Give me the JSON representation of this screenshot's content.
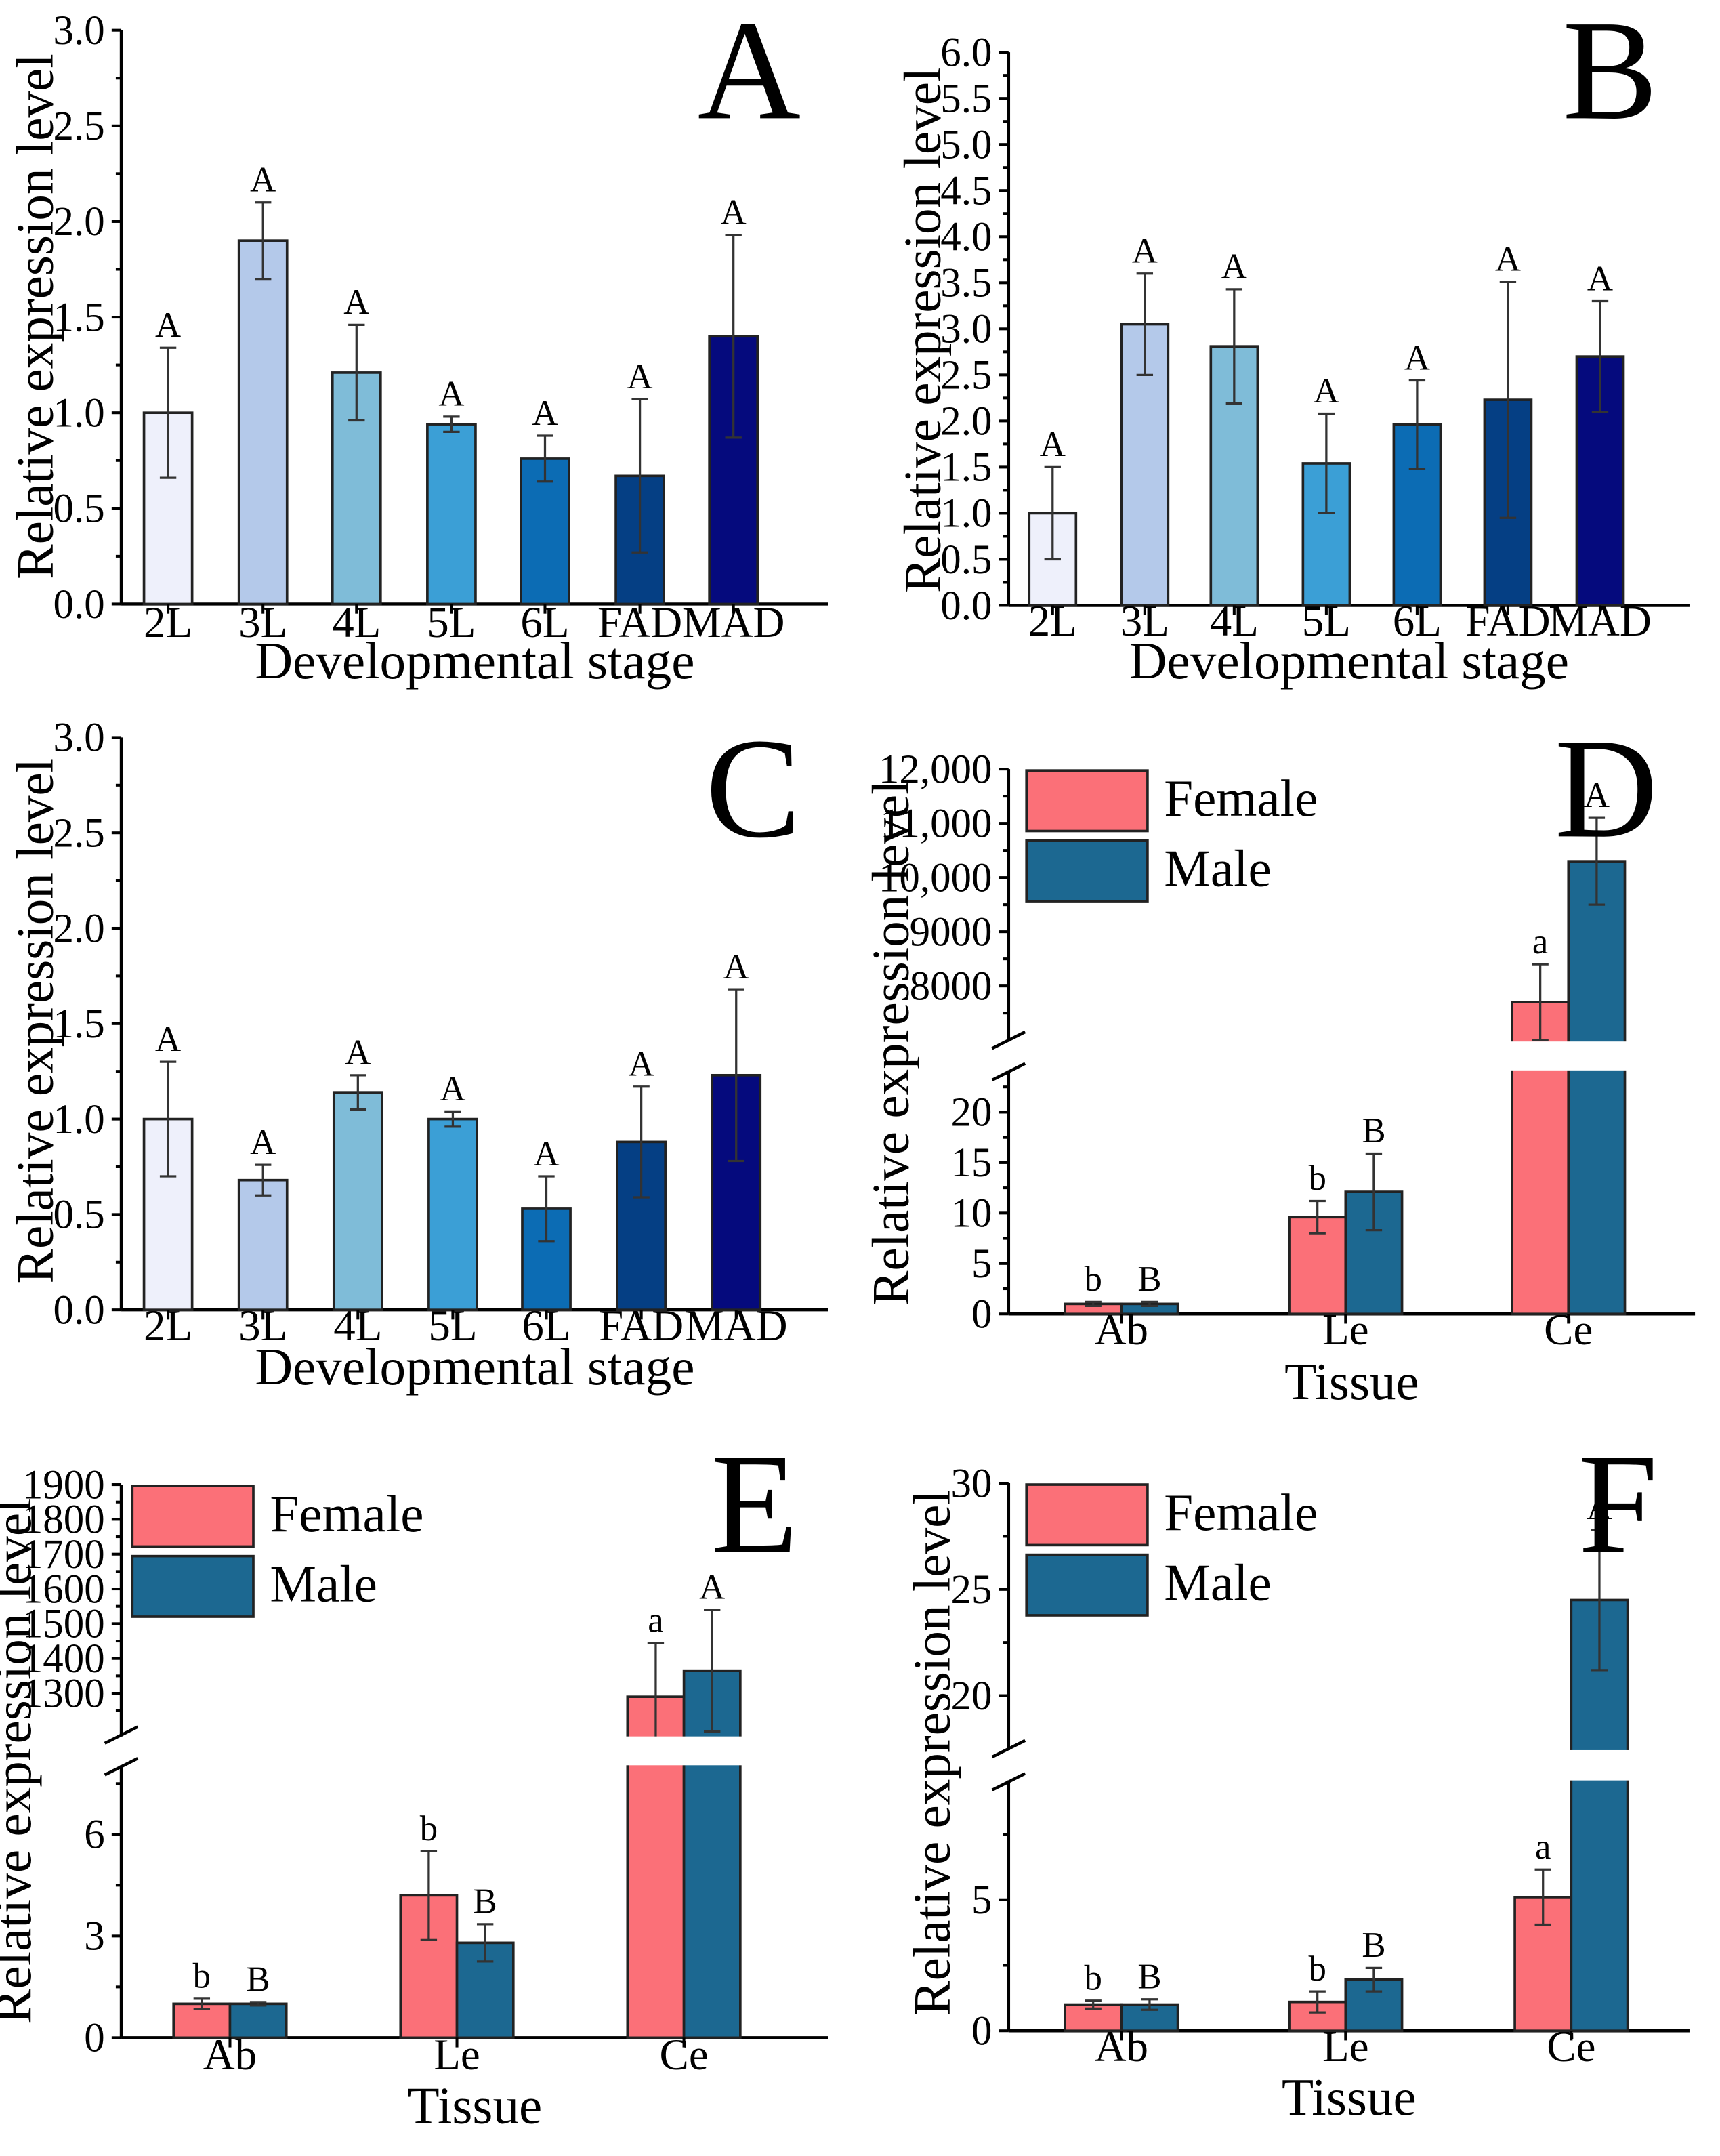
{
  "colors": {
    "stage": [
      "#eef0fb",
      "#b4c9ea",
      "#7fbcd8",
      "#3b9fd6",
      "#0c6cb4",
      "#053f84",
      "#050a7d"
    ],
    "female": "#fb7078",
    "male": "#1c6891"
  },
  "chart_data": [
    {
      "id": "A",
      "type": "bar",
      "panel_label": "A",
      "categories": [
        "2L",
        "3L",
        "4L",
        "5L",
        "6L",
        "FAD",
        "MAD"
      ],
      "values": [
        1.0,
        1.9,
        1.21,
        0.94,
        0.76,
        0.67,
        1.4
      ],
      "errors": [
        0.34,
        0.2,
        0.25,
        0.04,
        0.12,
        0.4,
        0.53
      ],
      "significance": [
        "A",
        "A",
        "A",
        "A",
        "A",
        "A",
        "A"
      ],
      "ylim": [
        0,
        3.0
      ],
      "yticks": [
        0,
        0.5,
        1.0,
        1.5,
        2.0,
        2.5,
        3.0
      ],
      "ytick_labels": [
        "0.0",
        "0.5",
        "1.0",
        "1.5",
        "2.0",
        "2.5",
        "3.0"
      ],
      "xlabel": "Developmental stage",
      "ylabel": "Relative expression level"
    },
    {
      "id": "B",
      "type": "bar",
      "panel_label": "B",
      "categories": [
        "2L",
        "3L",
        "4L",
        "5L",
        "6L",
        "FAD",
        "MAD"
      ],
      "values": [
        1.0,
        3.05,
        2.81,
        1.54,
        1.96,
        2.23,
        2.7
      ],
      "errors": [
        0.5,
        0.55,
        0.62,
        0.54,
        0.48,
        1.28,
        0.6
      ],
      "significance": [
        "A",
        "A",
        "A",
        "A",
        "A",
        "A",
        "A"
      ],
      "ylim": [
        0,
        6.0
      ],
      "yticks": [
        0,
        0.5,
        1.0,
        1.5,
        2.0,
        2.5,
        3.0,
        3.5,
        4.0,
        4.5,
        5.0,
        5.5,
        6.0
      ],
      "ytick_labels": [
        "0.0",
        "0.5",
        "1.0",
        "1.5",
        "2.0",
        "2.5",
        "3.0",
        "3.5",
        "4.0",
        "4.5",
        "5.0",
        "5.5",
        "6.0"
      ],
      "xlabel": "Developmental stage",
      "ylabel": "Relative expression level"
    },
    {
      "id": "C",
      "type": "bar",
      "panel_label": "C",
      "categories": [
        "2L",
        "3L",
        "4L",
        "5L",
        "6L",
        "FAD",
        "MAD"
      ],
      "values": [
        1.0,
        0.68,
        1.14,
        1.0,
        0.53,
        0.88,
        1.23
      ],
      "errors": [
        0.3,
        0.08,
        0.09,
        0.04,
        0.17,
        0.29,
        0.45
      ],
      "significance": [
        "A",
        "A",
        "A",
        "A",
        "A",
        "A",
        "A"
      ],
      "ylim": [
        0,
        3.0
      ],
      "yticks": [
        0,
        0.5,
        1.0,
        1.5,
        2.0,
        2.5,
        3.0
      ],
      "ytick_labels": [
        "0.0",
        "0.5",
        "1.0",
        "1.5",
        "2.0",
        "2.5",
        "3.0"
      ],
      "xlabel": "Developmental stage",
      "ylabel": "Relative expression level"
    },
    {
      "id": "D",
      "type": "bar",
      "panel_label": "D",
      "categories": [
        "Ab",
        "Le",
        "Ce"
      ],
      "series": [
        {
          "name": "Female",
          "values": [
            1.0,
            9.6,
            7700
          ],
          "errors": [
            0.2,
            1.6,
            700
          ],
          "significance": [
            "b",
            "b",
            "a"
          ]
        },
        {
          "name": "Male",
          "values": [
            1.0,
            12.1,
            10300
          ],
          "errors": [
            0.2,
            3.8,
            800
          ],
          "significance": [
            "B",
            "B",
            "A"
          ]
        }
      ],
      "broken_axis": {
        "lower": [
          0,
          24
        ],
        "upper": [
          7000,
          12000
        ]
      },
      "yticks_lower": [
        0,
        5,
        10,
        15,
        20
      ],
      "ytick_labels_lower": [
        "0",
        "5",
        "10",
        "15",
        "20"
      ],
      "yticks_upper": [
        8000,
        9000,
        10000,
        11000,
        12000
      ],
      "ytick_labels_upper": [
        "8000",
        "9000",
        "10,000",
        "11,000",
        "12,000"
      ],
      "xlabel": "Tissue",
      "ylabel": "Relative expression level"
    },
    {
      "id": "E",
      "type": "bar",
      "panel_label": "E",
      "categories": [
        "Ab",
        "Le",
        "Ce"
      ],
      "series": [
        {
          "name": "Female",
          "values": [
            1.0,
            4.2,
            1290
          ],
          "errors": [
            0.15,
            1.3,
            155
          ],
          "significance": [
            "b",
            "b",
            "a"
          ]
        },
        {
          "name": "Male",
          "values": [
            1.0,
            2.8,
            1365
          ],
          "errors": [
            0.05,
            0.55,
            175
          ],
          "significance": [
            "B",
            "B",
            "A"
          ]
        }
      ],
      "broken_axis": {
        "lower": [
          0,
          8
        ],
        "upper": [
          1180,
          1900
        ]
      },
      "yticks_lower": [
        0,
        3,
        6
      ],
      "ytick_labels_lower": [
        "0",
        "3",
        "6"
      ],
      "yticks_upper": [
        1300,
        1400,
        1500,
        1600,
        1700,
        1800,
        1900
      ],
      "ytick_labels_upper": [
        "1300",
        "1400",
        "1500",
        "1600",
        "1700",
        "1800",
        "1900"
      ],
      "xlabel": "Tissue",
      "ylabel": "Relative expression level"
    },
    {
      "id": "F",
      "type": "bar",
      "panel_label": "F",
      "categories": [
        "Ab",
        "Le",
        "Ce"
      ],
      "series": [
        {
          "name": "Female",
          "values": [
            1.0,
            1.1,
            5.1
          ],
          "errors": [
            0.15,
            0.4,
            1.05
          ],
          "significance": [
            "b",
            "b",
            "a"
          ]
        },
        {
          "name": "Male",
          "values": [
            1.0,
            1.95,
            24.5
          ],
          "errors": [
            0.2,
            0.45,
            3.3
          ],
          "significance": [
            "B",
            "B",
            "A"
          ]
        }
      ],
      "broken_axis": {
        "lower": [
          0,
          9.5
        ],
        "upper": [
          17.5,
          30
        ]
      },
      "yticks_lower": [
        0,
        5
      ],
      "ytick_labels_lower": [
        "0",
        "5"
      ],
      "yticks_upper": [
        20,
        25,
        30
      ],
      "ytick_labels_upper": [
        "20",
        "25",
        "30"
      ],
      "xlabel": "Tissue",
      "ylabel": "Relative expression level"
    }
  ]
}
